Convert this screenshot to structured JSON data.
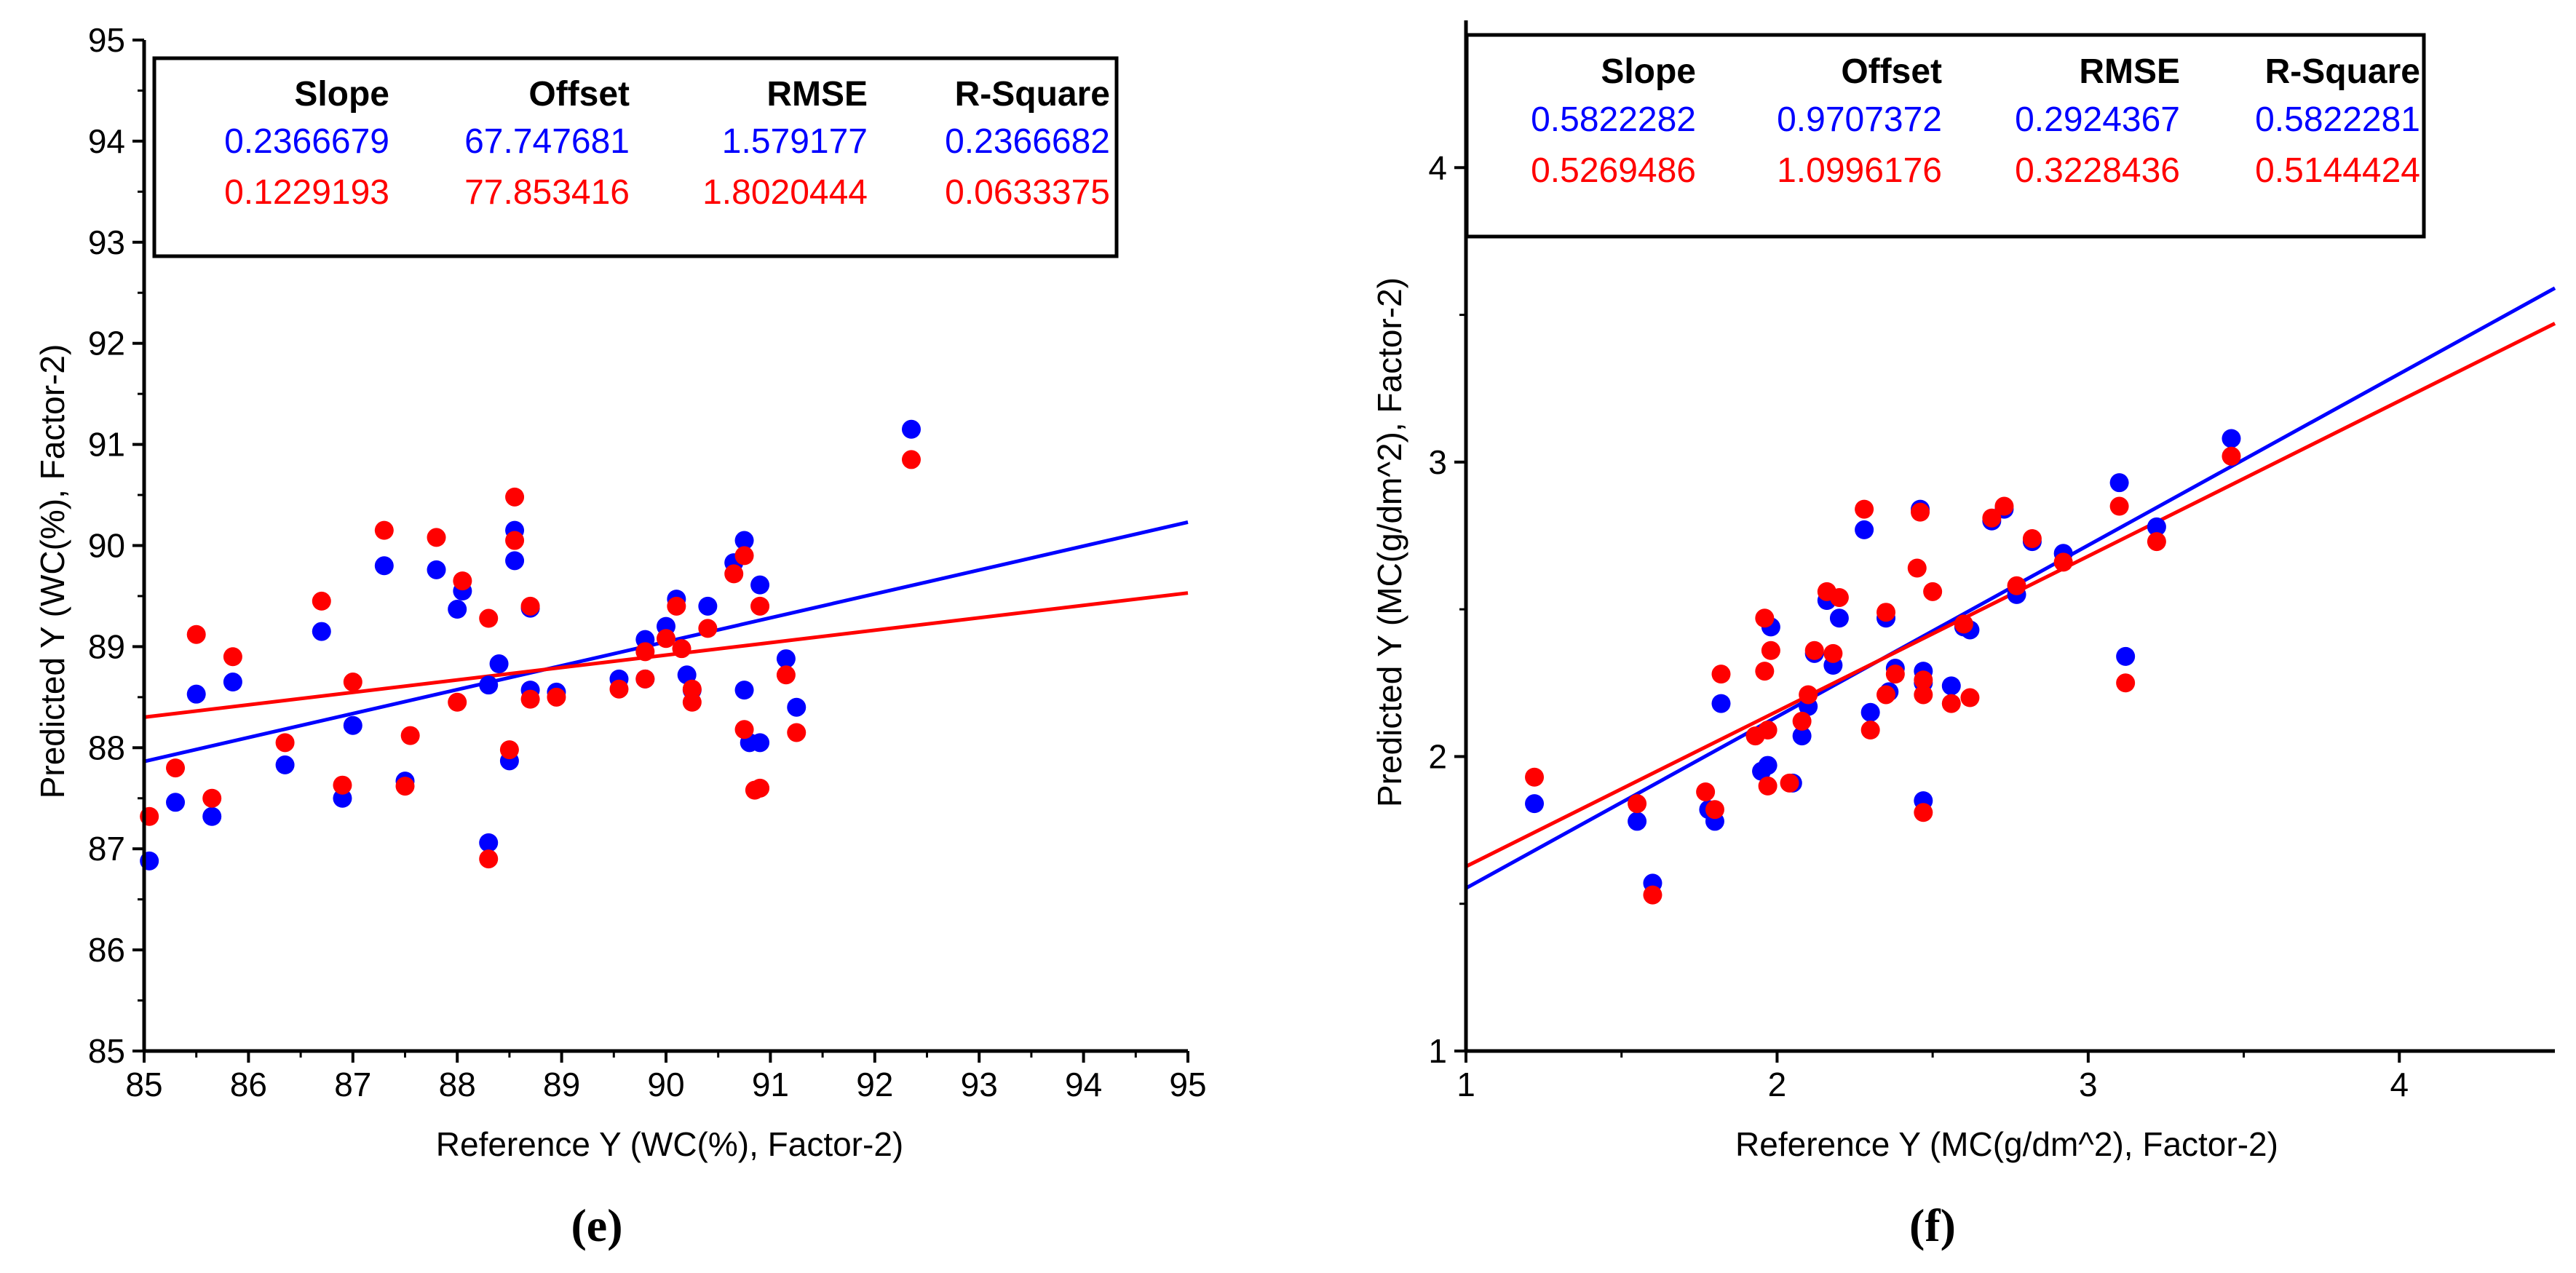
{
  "colors": {
    "blue": "#0000ff",
    "red": "#ff0000",
    "axis": "#000000"
  },
  "chart_data": [
    {
      "type": "scatter",
      "panel_label": "(e)",
      "xlabel": "Reference Y (WC(%), Factor-2)",
      "ylabel": "Predicted Y (WC(%), Factor-2)",
      "xlim": [
        85,
        95
      ],
      "ylim": [
        85,
        95
      ],
      "xticks": [
        "85",
        "86",
        "87",
        "88",
        "89",
        "90",
        "91",
        "92",
        "93",
        "94",
        "95"
      ],
      "yticks": [
        "85",
        "86",
        "87",
        "88",
        "89",
        "90",
        "91",
        "92",
        "93",
        "94",
        "95"
      ],
      "stats_table": {
        "headers": [
          "Slope",
          "Offset",
          "RMSE",
          "R-Square"
        ],
        "rows": [
          {
            "color": "blue",
            "values": [
              "0.2366679",
              "67.747681",
              "1.579177",
              "0.2366682"
            ]
          },
          {
            "color": "red",
            "values": [
              "0.1229193",
              "77.853416",
              "1.8020444",
              "0.0633375"
            ]
          }
        ]
      },
      "series": [
        {
          "name": "blue",
          "color": "blue",
          "fit_line": {
            "slope": 0.2366679,
            "offset": 67.747681
          },
          "points": [
            [
              85.05,
              86.88
            ],
            [
              85.3,
              87.46
            ],
            [
              85.5,
              88.53
            ],
            [
              85.65,
              87.32
            ],
            [
              85.85,
              88.65
            ],
            [
              86.35,
              87.83
            ],
            [
              86.7,
              89.15
            ],
            [
              86.9,
              87.5
            ],
            [
              87.0,
              88.22
            ],
            [
              87.3,
              89.8
            ],
            [
              87.5,
              87.67
            ],
            [
              87.8,
              89.76
            ],
            [
              88.0,
              89.37
            ],
            [
              88.05,
              89.55
            ],
            [
              88.3,
              87.06
            ],
            [
              88.4,
              88.83
            ],
            [
              88.3,
              88.62
            ],
            [
              88.5,
              87.87
            ],
            [
              88.55,
              90.15
            ],
            [
              88.55,
              89.85
            ],
            [
              88.7,
              88.57
            ],
            [
              88.7,
              89.38
            ],
            [
              88.95,
              88.55
            ],
            [
              89.55,
              88.68
            ],
            [
              89.8,
              89.07
            ],
            [
              89.8,
              88.68
            ],
            [
              90.0,
              89.2
            ],
            [
              90.1,
              89.47
            ],
            [
              90.2,
              88.72
            ],
            [
              90.25,
              88.57
            ],
            [
              90.4,
              89.4
            ],
            [
              90.65,
              89.83
            ],
            [
              90.75,
              90.05
            ],
            [
              90.75,
              88.57
            ],
            [
              90.8,
              88.05
            ],
            [
              90.9,
              89.61
            ],
            [
              90.9,
              88.05
            ],
            [
              91.15,
              88.88
            ],
            [
              91.25,
              88.4
            ],
            [
              92.35,
              91.15
            ]
          ]
        },
        {
          "name": "red",
          "color": "red",
          "fit_line": {
            "slope": 0.1229193,
            "offset": 77.853416
          },
          "points": [
            [
              85.05,
              87.32
            ],
            [
              85.3,
              87.8
            ],
            [
              85.5,
              89.12
            ],
            [
              85.65,
              87.5
            ],
            [
              85.85,
              88.9
            ],
            [
              86.35,
              88.05
            ],
            [
              86.7,
              89.45
            ],
            [
              86.9,
              87.63
            ],
            [
              87.0,
              88.65
            ],
            [
              87.3,
              90.15
            ],
            [
              87.55,
              88.12
            ],
            [
              87.5,
              87.62
            ],
            [
              87.8,
              90.08
            ],
            [
              88.0,
              88.45
            ],
            [
              88.05,
              89.65
            ],
            [
              88.3,
              89.28
            ],
            [
              88.3,
              86.9
            ],
            [
              88.5,
              87.98
            ],
            [
              88.55,
              90.48
            ],
            [
              88.55,
              90.05
            ],
            [
              88.7,
              88.48
            ],
            [
              88.7,
              89.4
            ],
            [
              88.95,
              88.5
            ],
            [
              89.55,
              88.58
            ],
            [
              89.8,
              88.95
            ],
            [
              89.8,
              88.68
            ],
            [
              90.0,
              89.08
            ],
            [
              90.1,
              89.4
            ],
            [
              90.15,
              88.98
            ],
            [
              90.25,
              88.45
            ],
            [
              90.25,
              88.58
            ],
            [
              90.4,
              89.18
            ],
            [
              90.65,
              89.72
            ],
            [
              90.75,
              89.9
            ],
            [
              90.75,
              88.18
            ],
            [
              90.85,
              87.58
            ],
            [
              90.9,
              89.4
            ],
            [
              90.9,
              87.6
            ],
            [
              91.15,
              88.72
            ],
            [
              91.25,
              88.15
            ],
            [
              92.35,
              90.85
            ]
          ]
        }
      ]
    },
    {
      "type": "scatter",
      "panel_label": "(f)",
      "xlabel": "Reference Y (MC(g/dm^2), Factor-2)",
      "ylabel": "Predicted Y (MC(g/dm^2), Factor-2)",
      "xlim": [
        1,
        4.5
      ],
      "ylim": [
        1,
        4.5
      ],
      "xticks": [
        "1",
        "2",
        "3",
        "4"
      ],
      "yticks": [
        "1",
        "2",
        "3",
        "4"
      ],
      "stats_table": {
        "headers": [
          "Slope",
          "Offset",
          "RMSE",
          "R-Square"
        ],
        "rows": [
          {
            "color": "blue",
            "values": [
              "0.5822282",
              "0.9707372",
              "0.2924367",
              "0.5822281"
            ]
          },
          {
            "color": "red",
            "values": [
              "0.5269486",
              "1.0996176",
              "0.3228436",
              "0.5144424"
            ]
          }
        ]
      },
      "series": [
        {
          "name": "blue",
          "color": "blue",
          "fit_line": {
            "slope": 0.5822282,
            "offset": 0.9707372
          },
          "points": [
            [
              1.22,
              1.84
            ],
            [
              1.55,
              1.78
            ],
            [
              1.6,
              1.57
            ],
            [
              1.78,
              1.82
            ],
            [
              1.8,
              1.78
            ],
            [
              1.82,
              2.18
            ],
            [
              1.95,
              1.95
            ],
            [
              1.97,
              1.97
            ],
            [
              1.98,
              2.44
            ],
            [
              2.05,
              1.91
            ],
            [
              2.08,
              2.07
            ],
            [
              2.1,
              2.17
            ],
            [
              2.12,
              2.35
            ],
            [
              2.16,
              2.53
            ],
            [
              2.18,
              2.31
            ],
            [
              2.2,
              2.47
            ],
            [
              2.28,
              2.77
            ],
            [
              2.3,
              2.15
            ],
            [
              2.35,
              2.47
            ],
            [
              2.36,
              2.22
            ],
            [
              2.38,
              2.3
            ],
            [
              2.46,
              2.84
            ],
            [
              2.47,
              2.29
            ],
            [
              2.47,
              2.25
            ],
            [
              2.47,
              1.85
            ],
            [
              2.56,
              2.24
            ],
            [
              2.6,
              2.44
            ],
            [
              2.62,
              2.43
            ],
            [
              2.69,
              2.8
            ],
            [
              2.73,
              2.84
            ],
            [
              2.77,
              2.55
            ],
            [
              2.82,
              2.73
            ],
            [
              2.92,
              2.69
            ],
            [
              3.1,
              2.93
            ],
            [
              3.12,
              2.34
            ],
            [
              3.22,
              2.78
            ],
            [
              3.46,
              3.08
            ]
          ]
        },
        {
          "name": "red",
          "color": "red",
          "fit_line": {
            "slope": 0.5269486,
            "offset": 1.0996176
          },
          "points": [
            [
              1.22,
              1.93
            ],
            [
              1.55,
              1.84
            ],
            [
              1.6,
              1.53
            ],
            [
              1.77,
              1.88
            ],
            [
              1.8,
              1.82
            ],
            [
              1.82,
              2.28
            ],
            [
              1.93,
              2.07
            ],
            [
              1.96,
              2.47
            ],
            [
              1.96,
              2.29
            ],
            [
              1.97,
              1.9
            ],
            [
              1.97,
              2.09
            ],
            [
              1.98,
              2.36
            ],
            [
              2.04,
              1.91
            ],
            [
              2.08,
              2.12
            ],
            [
              2.1,
              2.21
            ],
            [
              2.12,
              2.36
            ],
            [
              2.16,
              2.56
            ],
            [
              2.18,
              2.35
            ],
            [
              2.2,
              2.54
            ],
            [
              2.28,
              2.84
            ],
            [
              2.3,
              2.09
            ],
            [
              2.35,
              2.49
            ],
            [
              2.35,
              2.21
            ],
            [
              2.38,
              2.28
            ],
            [
              2.45,
              2.64
            ],
            [
              2.46,
              2.83
            ],
            [
              2.47,
              2.26
            ],
            [
              2.47,
              2.21
            ],
            [
              2.47,
              1.81
            ],
            [
              2.5,
              2.56
            ],
            [
              2.56,
              2.18
            ],
            [
              2.6,
              2.45
            ],
            [
              2.62,
              2.2
            ],
            [
              2.69,
              2.81
            ],
            [
              2.73,
              2.85
            ],
            [
              2.77,
              2.58
            ],
            [
              2.82,
              2.74
            ],
            [
              2.92,
              2.66
            ],
            [
              3.1,
              2.85
            ],
            [
              3.12,
              2.25
            ],
            [
              3.22,
              2.73
            ],
            [
              3.46,
              3.02
            ]
          ]
        }
      ]
    }
  ]
}
